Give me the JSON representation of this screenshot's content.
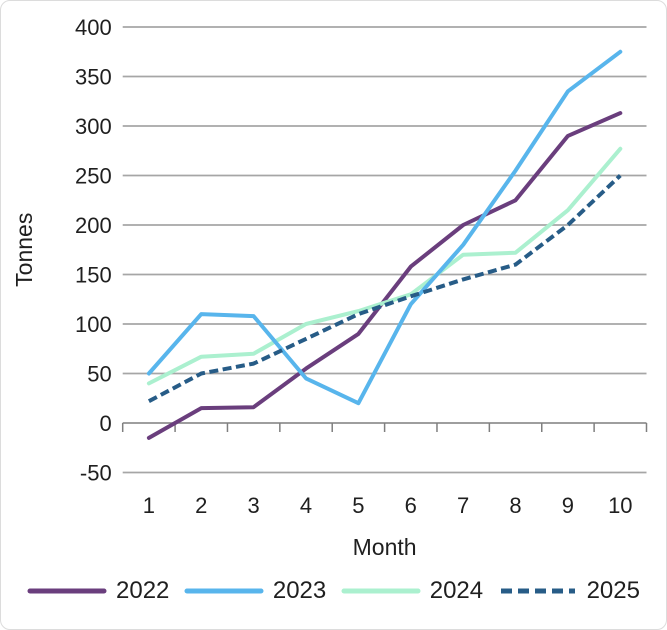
{
  "chart_data": {
    "type": "line",
    "xlabel": "Month",
    "ylabel": "Tonnes",
    "x": [
      1,
      2,
      3,
      4,
      5,
      6,
      7,
      8,
      9,
      10
    ],
    "yticks": [
      -50,
      0,
      50,
      100,
      150,
      200,
      250,
      300,
      350,
      400
    ],
    "ylim": [
      -50,
      400
    ],
    "grid": true,
    "legend_position": "bottom",
    "series": [
      {
        "name": "2022",
        "color": "#6a3e7d",
        "dashed": false,
        "z": 1,
        "values": [
          -15,
          15,
          16,
          55,
          90,
          158,
          200,
          225,
          290,
          313
        ]
      },
      {
        "name": "2023",
        "color": "#58b5ec",
        "dashed": false,
        "z": 3,
        "values": [
          50,
          110,
          108,
          45,
          20,
          120,
          180,
          255,
          335,
          375
        ]
      },
      {
        "name": "2024",
        "color": "#abf0cf",
        "dashed": false,
        "z": 2,
        "values": [
          40,
          67,
          70,
          100,
          113,
          130,
          170,
          172,
          215,
          277
        ]
      },
      {
        "name": "2025",
        "color": "#275c87",
        "dashed": true,
        "z": 4,
        "values": [
          22,
          50,
          60,
          85,
          110,
          128,
          145,
          160,
          200,
          250
        ]
      }
    ]
  },
  "colors": {
    "grid": "#a6a6a6",
    "axis": "#7f7f7f",
    "text": "#1f1f1f",
    "background": "#ffffff",
    "border": "#dcdcdc"
  }
}
